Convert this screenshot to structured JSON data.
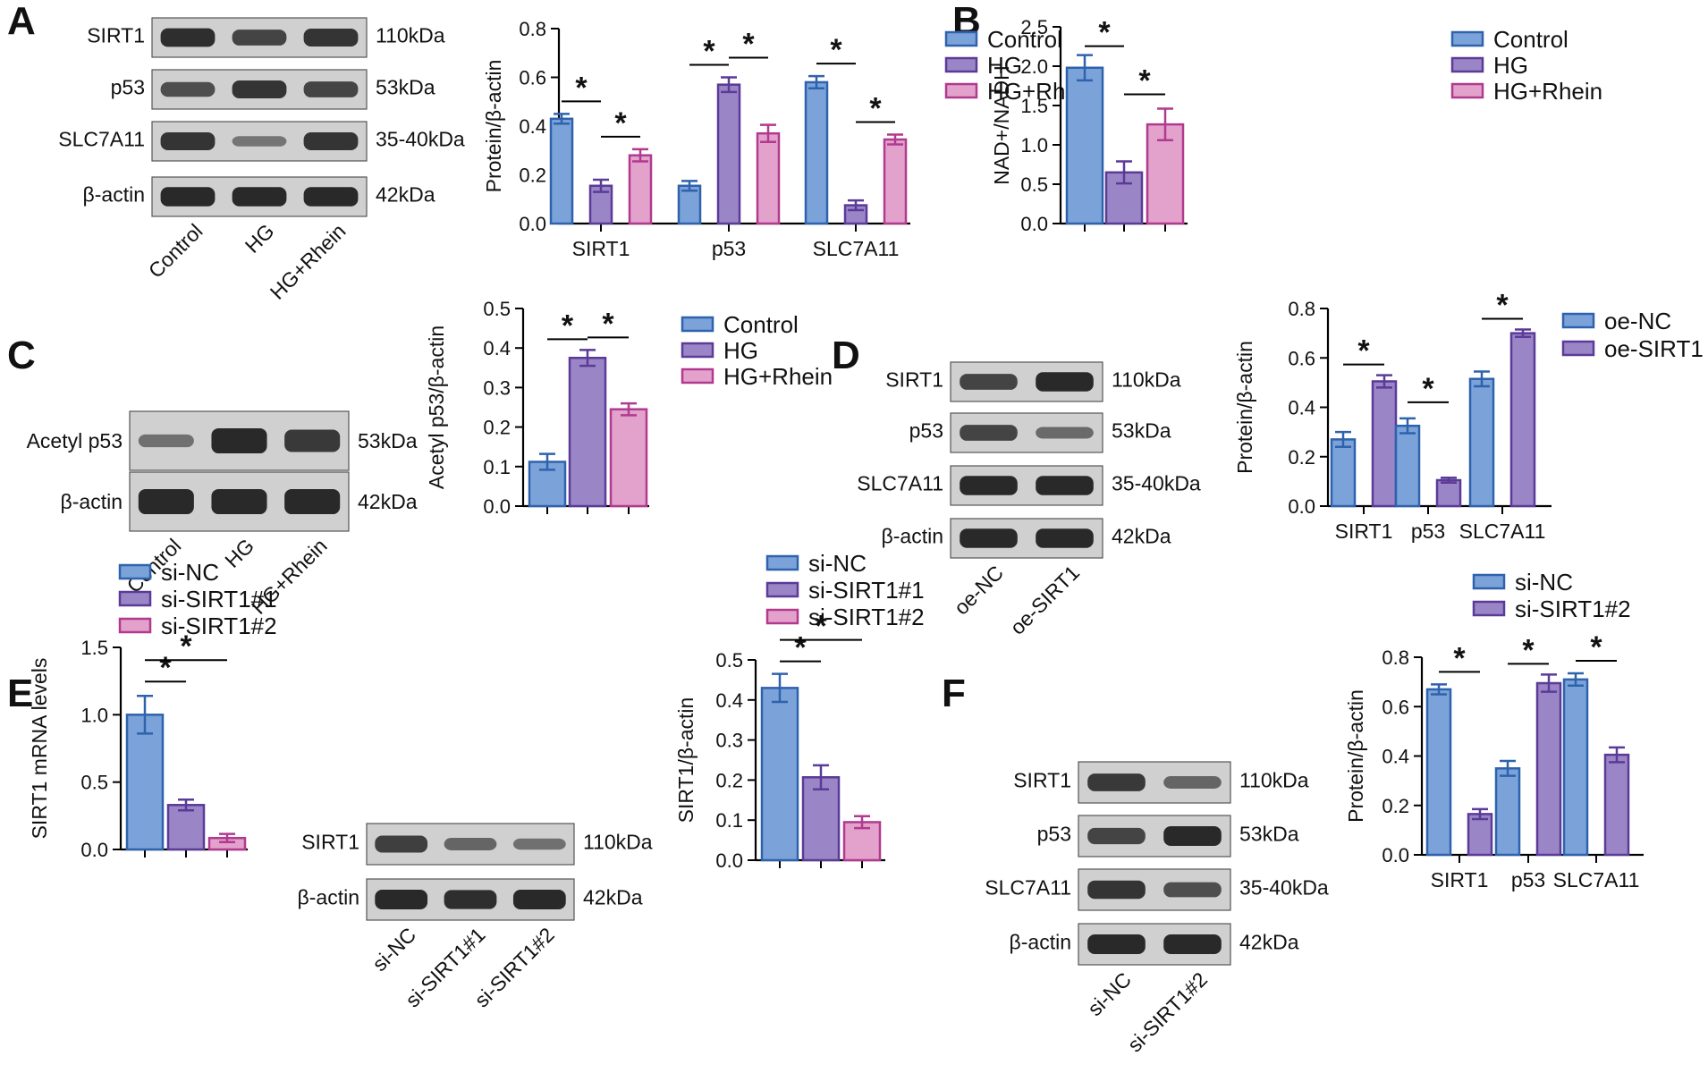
{
  "colors": {
    "blue_fill": "#7ba3d9",
    "blue_stroke": "#2f62ad",
    "purple_fill": "#9a86c7",
    "purple_stroke": "#5b3a98",
    "pink_fill": "#e3a2cc",
    "pink_stroke": "#b13a8e",
    "blot_bg": "#d0d0d0",
    "band": "#1a1a1a"
  },
  "panels": {
    "A": "A",
    "B": "B",
    "C": "C",
    "D": "D",
    "E": "E",
    "F": "F"
  },
  "blots": {
    "A": {
      "rows": [
        "SIRT1",
        "p53",
        "SLC7A11",
        "β-actin"
      ],
      "sizes": [
        "110kDa",
        "53kDa",
        "35-40kDa",
        "42kDa"
      ],
      "lanes": [
        "Control",
        "HG",
        "HG+Rhein"
      ]
    },
    "C": {
      "rows": [
        "Acetyl p53",
        "β-actin"
      ],
      "sizes": [
        "53kDa",
        "42kDa"
      ],
      "lanes": [
        "Control",
        "HG",
        "HG+Rhein"
      ]
    },
    "D": {
      "rows": [
        "SIRT1",
        "p53",
        "SLC7A11",
        "β-actin"
      ],
      "sizes": [
        "110kDa",
        "53kDa",
        "35-40kDa",
        "42kDa"
      ],
      "lanes": [
        "oe-NC",
        "oe-SIRT1"
      ]
    },
    "E": {
      "rows": [
        "SIRT1",
        "β-actin"
      ],
      "sizes": [
        "110kDa",
        "42kDa"
      ],
      "lanes": [
        "si-NC",
        "si-SIRT1#1",
        "si-SIRT1#2"
      ]
    },
    "F": {
      "rows": [
        "SIRT1",
        "p53",
        "SLC7A11",
        "β-actin"
      ],
      "sizes": [
        "110kDa",
        "53kDa",
        "35-40kDa",
        "42kDa"
      ],
      "lanes": [
        "si-NC",
        "si-SIRT1#2"
      ]
    }
  },
  "chart_data": [
    {
      "id": "A",
      "type": "bar",
      "ylabel": "Protein/β-actin",
      "ylim": [
        0,
        0.8
      ],
      "yticks": [
        "0.0",
        "0.2",
        "0.4",
        "0.6",
        "0.8"
      ],
      "categories": [
        "SIRT1",
        "p53",
        "SLC7A11"
      ],
      "series": [
        {
          "name": "Control",
          "values": [
            0.43,
            0.155,
            0.58
          ],
          "errors": [
            0.02,
            0.02,
            0.025
          ]
        },
        {
          "name": "HG",
          "values": [
            0.155,
            0.57,
            0.075
          ],
          "errors": [
            0.025,
            0.03,
            0.02
          ]
        },
        {
          "name": "HG+Rhein",
          "values": [
            0.28,
            0.37,
            0.345
          ],
          "errors": [
            0.025,
            0.035,
            0.02
          ]
        }
      ],
      "legend": "top-right",
      "significance": "*"
    },
    {
      "id": "B",
      "type": "bar",
      "ylabel": "NAD+/NADH",
      "ylim": [
        0,
        2.5
      ],
      "yticks": [
        "0.0",
        "0.5",
        "1.0",
        "1.5",
        "2.0",
        "2.5"
      ],
      "categories": [
        "Control",
        "HG",
        "HG+Rhein"
      ],
      "series": [
        {
          "name": "values",
          "values": [
            1.98,
            0.65,
            1.26
          ],
          "errors": [
            0.16,
            0.14,
            0.2
          ]
        }
      ],
      "legend_entries": [
        "Control",
        "HG",
        "HG+Rhein"
      ],
      "legend": "top-right",
      "significance": "*"
    },
    {
      "id": "C",
      "type": "bar",
      "ylabel": "Acetyl p53/β-actin",
      "ylim": [
        0,
        0.5
      ],
      "yticks": [
        "0.0",
        "0.1",
        "0.2",
        "0.3",
        "0.4",
        "0.5"
      ],
      "categories": [
        "Control",
        "HG",
        "HG+Rhein"
      ],
      "series": [
        {
          "name": "values",
          "values": [
            0.112,
            0.375,
            0.245
          ],
          "errors": [
            0.02,
            0.02,
            0.015
          ]
        }
      ],
      "legend_entries": [
        "Control",
        "HG",
        "HG+Rhein"
      ],
      "legend": "top-right",
      "significance": "*"
    },
    {
      "id": "D",
      "type": "bar",
      "ylabel": "Protein/β-actin",
      "ylim": [
        0,
        0.8
      ],
      "yticks": [
        "0.0",
        "0.2",
        "0.4",
        "0.6",
        "0.8"
      ],
      "categories": [
        "SIRT1",
        "p53",
        "SLC7A11"
      ],
      "series": [
        {
          "name": "oe-NC",
          "values": [
            0.27,
            0.325,
            0.515
          ],
          "errors": [
            0.03,
            0.03,
            0.03
          ]
        },
        {
          "name": "oe-SIRT1",
          "values": [
            0.505,
            0.105,
            0.7
          ],
          "errors": [
            0.025,
            0.01,
            0.015
          ]
        }
      ],
      "legend": "top-right",
      "significance": "*"
    },
    {
      "id": "E1",
      "type": "bar",
      "ylabel": "SIRT1 mRNA levels",
      "ylim": [
        0,
        1.5
      ],
      "yticks": [
        "0.0",
        "0.5",
        "1.0",
        "1.5"
      ],
      "categories": [
        "si-NC",
        "si-SIRT1#1",
        "si-SIRT1#2"
      ],
      "series": [
        {
          "name": "values",
          "values": [
            1.0,
            0.33,
            0.085
          ],
          "errors": [
            0.14,
            0.04,
            0.03
          ]
        }
      ],
      "legend_entries": [
        "si-NC",
        "si-SIRT1#1",
        "si-SIRT1#2"
      ],
      "legend": "top-left",
      "significance": "*"
    },
    {
      "id": "E2",
      "type": "bar",
      "ylabel": "SIRT1/β-actin",
      "ylim": [
        0,
        0.5
      ],
      "yticks": [
        "0.0",
        "0.1",
        "0.2",
        "0.3",
        "0.4",
        "0.5"
      ],
      "categories": [
        "si-NC",
        "si-SIRT1#1",
        "si-SIRT1#2"
      ],
      "series": [
        {
          "name": "values",
          "values": [
            0.43,
            0.207,
            0.095
          ],
          "errors": [
            0.035,
            0.03,
            0.015
          ]
        }
      ],
      "legend_entries": [
        "si-NC",
        "si-SIRT1#1",
        "si-SIRT1#2"
      ],
      "legend": "top",
      "significance": "*"
    },
    {
      "id": "F",
      "type": "bar",
      "ylabel": "Protein/β-actin",
      "ylim": [
        0,
        0.8
      ],
      "yticks": [
        "0.0",
        "0.2",
        "0.4",
        "0.6",
        "0.8"
      ],
      "categories": [
        "SIRT1",
        "p53",
        "SLC7A11"
      ],
      "series": [
        {
          "name": "si-NC",
          "values": [
            0.67,
            0.35,
            0.71
          ],
          "errors": [
            0.02,
            0.03,
            0.025
          ]
        },
        {
          "name": "si-SIRT1#2",
          "values": [
            0.165,
            0.695,
            0.405
          ],
          "errors": [
            0.02,
            0.035,
            0.03
          ]
        }
      ],
      "legend": "top-right",
      "significance": "*"
    }
  ]
}
